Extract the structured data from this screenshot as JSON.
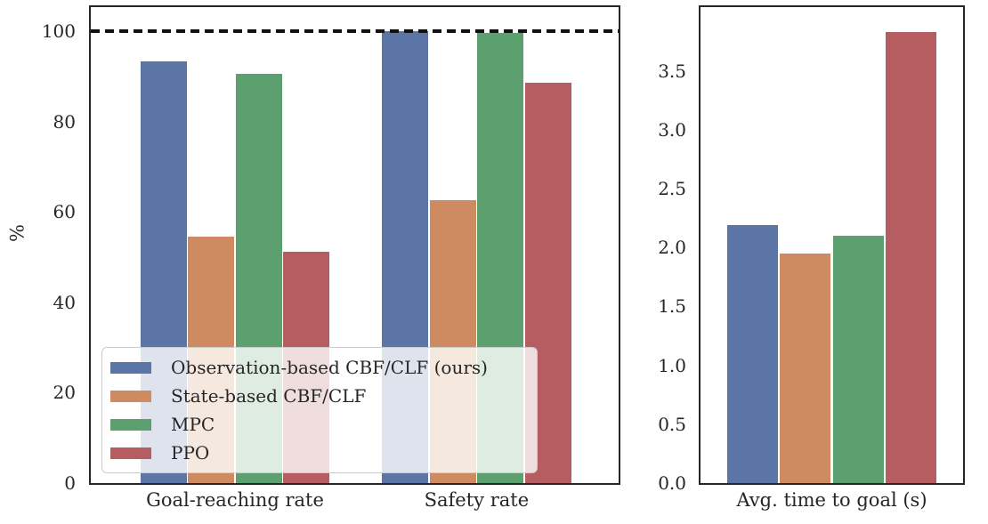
{
  "palette": {
    "series_colors": {
      "blue": "#5B76A6",
      "orange": "#CE8A60",
      "green": "#5CA06F",
      "red": "#B55D60"
    },
    "spine": "#262626",
    "text": "#262626",
    "reference_line": "#111111",
    "legend_border": "#cccccc",
    "background": "#ffffff"
  },
  "chart_data": [
    {
      "type": "bar",
      "panel": "left",
      "ylabel": "%",
      "categories": [
        "Goal-reaching rate",
        "Safety rate"
      ],
      "series": [
        {
          "name": "Observation-based CBF/CLF (ours)",
          "color": "blue",
          "values": [
            93.2,
            100.0
          ]
        },
        {
          "name": "State-based CBF/CLF",
          "color": "orange",
          "values": [
            54.5,
            62.5
          ]
        },
        {
          "name": "MPC",
          "color": "green",
          "values": [
            90.5,
            99.5
          ]
        },
        {
          "name": "PPO",
          "color": "red",
          "values": [
            51.2,
            88.5
          ]
        }
      ],
      "ylim": [
        0,
        105.3
      ],
      "ytick_values": [
        0,
        20,
        40,
        60,
        80,
        100
      ],
      "ytick_labels": [
        "0",
        "20",
        "40",
        "60",
        "80",
        "100"
      ],
      "grid": false,
      "reference_line": {
        "value": 100,
        "style": "dashed"
      },
      "legend": {
        "visible": true,
        "position": "lower left"
      }
    },
    {
      "type": "bar",
      "panel": "right",
      "ylabel": "",
      "categories": [
        "Avg. time to goal (s)"
      ],
      "series": [
        {
          "name": "Observation-based CBF/CLF (ours)",
          "color": "blue",
          "values": [
            2.19
          ]
        },
        {
          "name": "State-based CBF/CLF",
          "color": "orange",
          "values": [
            1.95
          ]
        },
        {
          "name": "MPC",
          "color": "green",
          "values": [
            2.1
          ]
        },
        {
          "name": "PPO",
          "color": "red",
          "values": [
            3.83
          ]
        }
      ],
      "ylim": [
        0,
        4.04
      ],
      "ytick_values": [
        0.0,
        0.5,
        1.0,
        1.5,
        2.0,
        2.5,
        3.0,
        3.5
      ],
      "ytick_labels": [
        "0.0",
        "0.5",
        "1.0",
        "1.5",
        "2.0",
        "2.5",
        "3.0",
        "3.5"
      ],
      "grid": false,
      "legend": {
        "visible": false
      }
    }
  ]
}
